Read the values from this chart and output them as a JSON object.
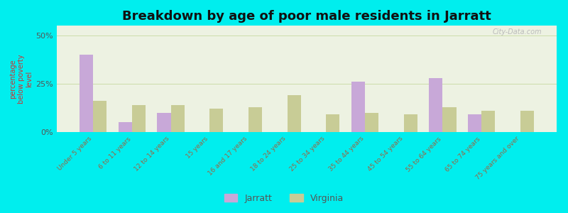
{
  "title": "Breakdown by age of poor male residents in Jarratt",
  "ylabel": "percentage\nbelow poverty\nlevel",
  "categories": [
    "Under 5 years",
    "6 to 11 years",
    "12 to 14 years",
    "15 years",
    "16 and 17 years",
    "18 to 24 years",
    "25 to 34 years",
    "35 to 44 years",
    "45 to 54 years",
    "55 to 64 years",
    "65 to 74 years",
    "75 years and over"
  ],
  "jarratt": [
    40,
    5,
    10,
    0,
    0,
    0,
    0,
    26,
    0,
    28,
    9,
    0
  ],
  "virginia": [
    16,
    14,
    14,
    12,
    13,
    19,
    9,
    10,
    9,
    13,
    11,
    11
  ],
  "jarratt_color": "#c8a8d8",
  "virginia_color": "#c8cc96",
  "ylim": [
    0,
    55
  ],
  "yticks": [
    0,
    25,
    50
  ],
  "ytick_labels": [
    "0%",
    "25%",
    "50%"
  ],
  "bar_width": 0.35,
  "legend_jarratt": "Jarratt",
  "legend_virginia": "Virginia",
  "outer_bg": "#00eeee",
  "title_fontsize": 13,
  "axis_bg_color": "#edf2e2",
  "tick_color": "#996644",
  "ylabel_color": "#cc3333",
  "grid_color": "#ccddaa",
  "watermark": "City-Data.com",
  "watermark_color": "#bbbbbb"
}
